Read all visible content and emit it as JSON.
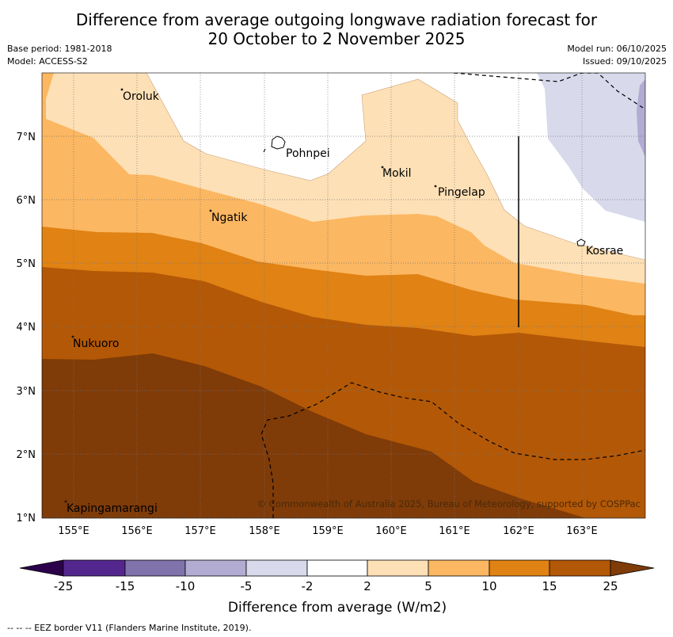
{
  "title": {
    "line1": "Difference from average outgoing longwave radiation forecast for",
    "line2": "20 October to 2 November 2025"
  },
  "meta": {
    "base_period": "Base period: 1981-2018",
    "model": "Model: ACCESS-S2",
    "model_run": "Model run: 06/10/2025",
    "issued": "Issued: 09/10/2025"
  },
  "axes": {
    "lon_ticks": [
      "155°E",
      "156°E",
      "157°E",
      "158°E",
      "159°E",
      "160°E",
      "161°E",
      "162°E",
      "163°E"
    ],
    "lat_ticks": [
      "7°N",
      "6°N",
      "5°N",
      "4°N",
      "3°N",
      "2°N",
      "1°N"
    ]
  },
  "places": [
    "Oroluk",
    "Pohnpei",
    "Mokil",
    "Pingelap",
    "Ngatik",
    "Kosrae",
    "Nukuoro",
    "Kapingamarangi"
  ],
  "copyright": "© Commonwealth of Australia 2025, Bureau of Meteorology, supported by COSPPac",
  "colorbar": {
    "ticks": [
      "-25",
      "-15",
      "-10",
      "-5",
      "-2",
      "2",
      "5",
      "10",
      "15",
      "25"
    ],
    "label": "Difference from average (W/m2)"
  },
  "footer": "-- -- -- EEZ border V11 (Flanders Marine Institute, 2019).",
  "colors": {
    "c_neg25_15": "#54278f",
    "c_neg15_10": "#8073ac",
    "c_neg10_5": "#b2abd2",
    "c_neg5_2": "#d8daeb",
    "c_neutral": "#ffffff",
    "c_2_5": "#fee0b6",
    "c_5_10": "#fbb761",
    "c_10_15": "#e08214",
    "c_15_25": "#b35806",
    "c_over25": "#7f3b08"
  }
}
